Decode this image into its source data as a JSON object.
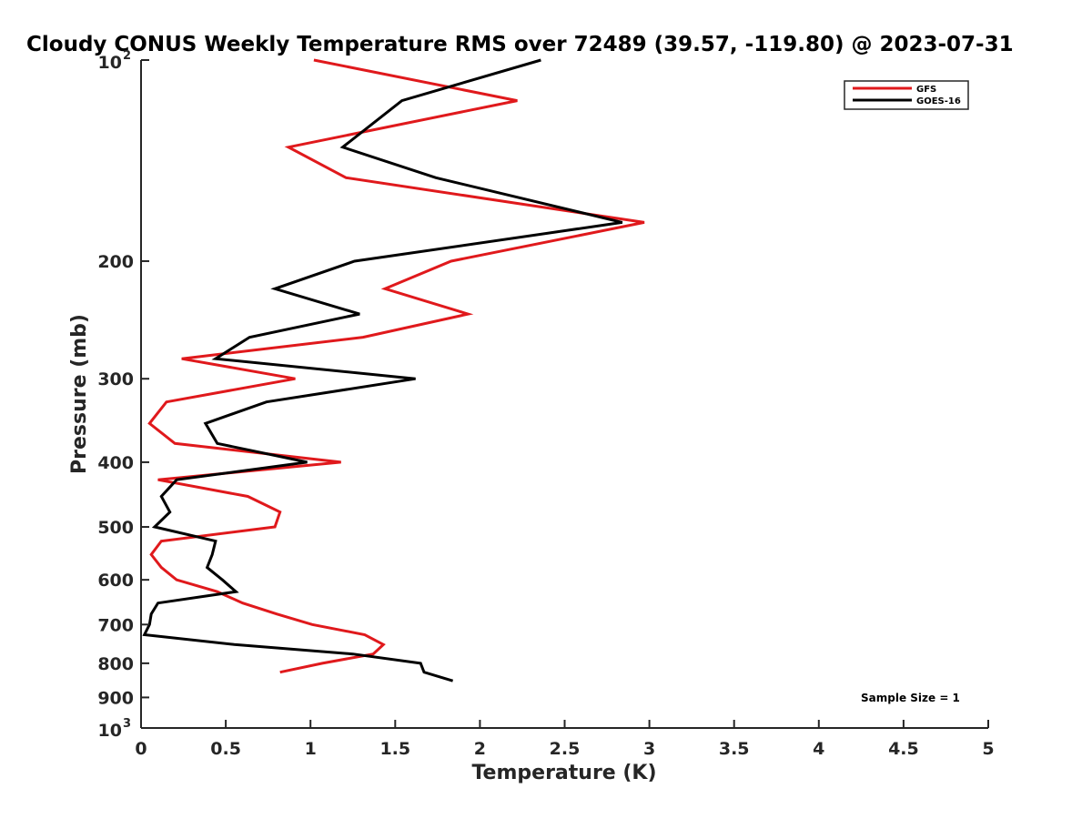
{
  "chart_data": {
    "type": "line",
    "title": "Cloudy CONUS Weekly Temperature RMS over 72489 (39.57, -119.80) @ 2023-07-31",
    "xlabel": "Temperature (K)",
    "ylabel": "Pressure (mb)",
    "xlim": [
      0,
      5
    ],
    "ylim": [
      100,
      1000
    ],
    "y_scale": "log",
    "y_reversed": true,
    "x_ticks": [
      "0",
      "0.5",
      "1",
      "1.5",
      "2",
      "2.5",
      "3",
      "3.5",
      "4",
      "4.5",
      "5"
    ],
    "y_ticks": [
      {
        "value": 100,
        "base": "10",
        "exp": "2"
      },
      {
        "value": 200,
        "label": "200"
      },
      {
        "value": 300,
        "label": "300"
      },
      {
        "value": 400,
        "label": "400"
      },
      {
        "value": 500,
        "label": "500"
      },
      {
        "value": 600,
        "label": "600"
      },
      {
        "value": 700,
        "label": "700"
      },
      {
        "value": 800,
        "label": "800"
      },
      {
        "value": 900,
        "label": "900"
      },
      {
        "value": 1000,
        "base": "10",
        "exp": "3"
      }
    ],
    "grid": false,
    "legend_position": "top-right",
    "annotation": "Sample Size = 1",
    "series": [
      {
        "name": "GFS",
        "color": "#e0191c",
        "points": [
          [
            1.02,
            100
          ],
          [
            2.22,
            115
          ],
          [
            0.87,
            135
          ],
          [
            1.21,
            150
          ],
          [
            2.97,
            175
          ],
          [
            1.83,
            200
          ],
          [
            1.44,
            220
          ],
          [
            1.93,
            240
          ],
          [
            1.31,
            260
          ],
          [
            0.24,
            280
          ],
          [
            0.91,
            300
          ],
          [
            0.15,
            325
          ],
          [
            0.05,
            350
          ],
          [
            0.2,
            375
          ],
          [
            1.18,
            400
          ],
          [
            0.1,
            425
          ],
          [
            0.63,
            450
          ],
          [
            0.82,
            475
          ],
          [
            0.79,
            500
          ],
          [
            0.12,
            525
          ],
          [
            0.06,
            550
          ],
          [
            0.12,
            575
          ],
          [
            0.21,
            600
          ],
          [
            0.45,
            625
          ],
          [
            0.6,
            650
          ],
          [
            0.8,
            675
          ],
          [
            1.01,
            700
          ],
          [
            1.32,
            725
          ],
          [
            1.43,
            750
          ],
          [
            1.37,
            775
          ],
          [
            1.07,
            800
          ],
          [
            0.82,
            825
          ]
        ]
      },
      {
        "name": "GOES-16",
        "color": "#000000",
        "points": [
          [
            2.36,
            100
          ],
          [
            1.54,
            115
          ],
          [
            1.19,
            135
          ],
          [
            1.74,
            150
          ],
          [
            2.84,
            175
          ],
          [
            1.26,
            200
          ],
          [
            0.79,
            220
          ],
          [
            1.29,
            240
          ],
          [
            0.64,
            260
          ],
          [
            0.44,
            280
          ],
          [
            1.62,
            300
          ],
          [
            0.74,
            325
          ],
          [
            0.38,
            350
          ],
          [
            0.45,
            375
          ],
          [
            0.98,
            400
          ],
          [
            0.21,
            425
          ],
          [
            0.12,
            450
          ],
          [
            0.17,
            475
          ],
          [
            0.08,
            500
          ],
          [
            0.44,
            525
          ],
          [
            0.42,
            550
          ],
          [
            0.39,
            575
          ],
          [
            0.48,
            600
          ],
          [
            0.56,
            625
          ],
          [
            0.1,
            650
          ],
          [
            0.06,
            675
          ],
          [
            0.05,
            700
          ],
          [
            0.02,
            725
          ],
          [
            0.55,
            750
          ],
          [
            1.25,
            775
          ],
          [
            1.65,
            800
          ],
          [
            1.67,
            825
          ],
          [
            1.84,
            850
          ]
        ]
      }
    ]
  }
}
